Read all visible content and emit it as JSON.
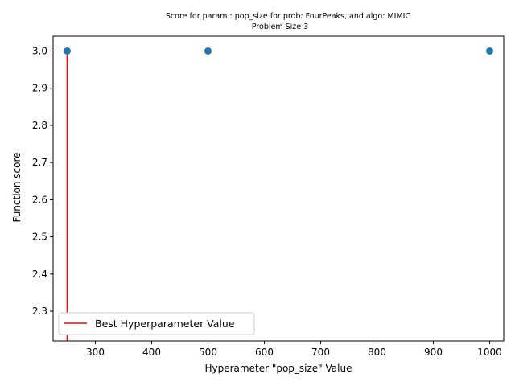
{
  "chart_data": {
    "type": "scatter",
    "title": "Score for param : pop_size for prob: FourPeaks, and algo: MIMIC",
    "subtitle": "Problem Size 3",
    "xlabel": "Hyperameter \"pop_size\" Value",
    "ylabel": "Function score",
    "xlim": [
      225,
      1025
    ],
    "ylim": [
      2.22,
      3.04
    ],
    "xticks": [
      300,
      400,
      500,
      600,
      700,
      800,
      900,
      1000
    ],
    "yticks": [
      2.3,
      2.4,
      2.5,
      2.6,
      2.7,
      2.8,
      2.9,
      3.0
    ],
    "grid": false,
    "points": [
      {
        "x": 250,
        "y": 3.0
      },
      {
        "x": 500,
        "y": 3.0
      },
      {
        "x": 1000,
        "y": 3.0
      }
    ],
    "point_color": "#1f77b4",
    "best_line": {
      "x": 250,
      "y_from": 2.22,
      "y_to": 3.0,
      "color": "#ff0000"
    },
    "legend": {
      "placement": "lower-left",
      "entries": [
        "Best Hyperparameter Value"
      ]
    }
  }
}
